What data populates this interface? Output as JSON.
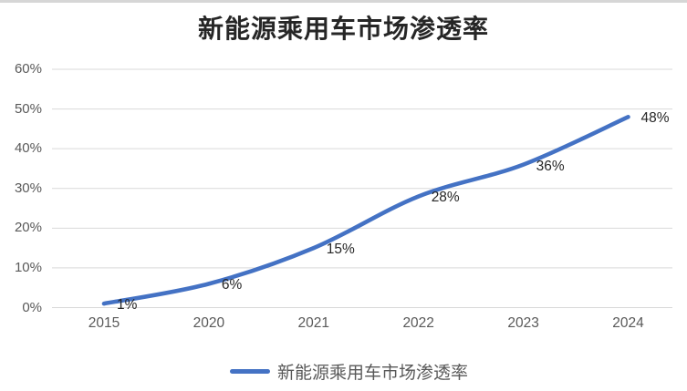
{
  "chart_data": {
    "type": "line",
    "title": "新能源乘用车市场渗透率",
    "categories": [
      "2015",
      "2020",
      "2021",
      "2022",
      "2023",
      "2024"
    ],
    "series": [
      {
        "name": "新能源乘用车市场渗透率",
        "values": [
          1,
          6,
          15,
          28,
          36,
          48
        ],
        "data_labels": [
          "1%",
          "6%",
          "15%",
          "28%",
          "36%",
          "48%"
        ],
        "color": "#4472C4"
      }
    ],
    "xlabel": "",
    "ylabel": "",
    "ylim": [
      0,
      60
    ],
    "y_ticks": [
      "0%",
      "10%",
      "20%",
      "30%",
      "40%",
      "50%",
      "60%"
    ],
    "y_tick_values": [
      0,
      10,
      20,
      30,
      40,
      50,
      60
    ],
    "grid": true,
    "smoothed_line": true,
    "legend_position": "bottom",
    "legend_entries": [
      "新能源乘用车市场渗透率"
    ],
    "colors": {
      "line": "#4472C4",
      "gridline": "#D9D9D9",
      "axis_text": "#595959",
      "data_label_text": "#262626",
      "title_text": "#262626",
      "background": "#FFFFFF",
      "top_border": "#D6D6D6"
    }
  }
}
